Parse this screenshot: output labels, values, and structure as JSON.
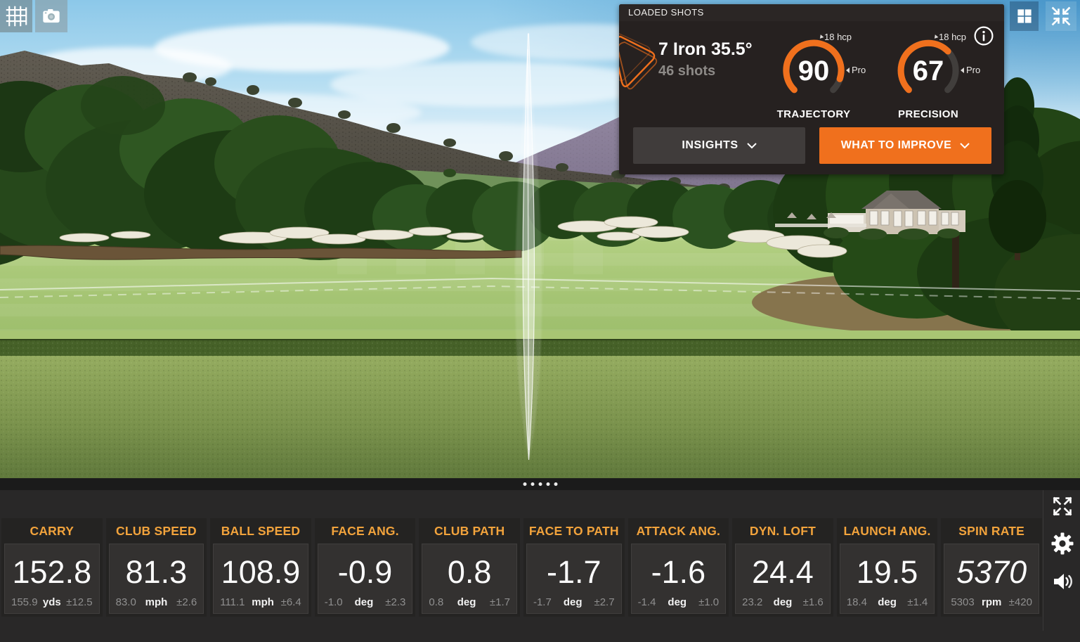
{
  "colors": {
    "accent_orange": "#f0701d",
    "metric_label_amber": "#f2a33c",
    "gauge_track_gray": "#413e3c",
    "panel_bg": "#262120",
    "bottom_bar_bg": "#292828"
  },
  "top_left_toolbar": {
    "buttons": [
      {
        "id": "grid",
        "icon": "grid-icon"
      },
      {
        "id": "camera",
        "icon": "camera-icon"
      }
    ]
  },
  "top_right_toolbar": {
    "buttons": [
      {
        "id": "layout-tiles",
        "icon": "tiles-icon"
      },
      {
        "id": "collapse-view",
        "icon": "collapse-arrows-icon"
      }
    ]
  },
  "loaded_shots_panel": {
    "title": "LOADED SHOTS",
    "club_name": "7 Iron 35.5°",
    "shot_count": "46 shots",
    "gauges": [
      {
        "label": "TRAJECTORY",
        "value": 90,
        "max": 100,
        "hcp_marker": "18 hcp",
        "pro_marker": "Pro"
      },
      {
        "label": "PRECISION",
        "value": 67,
        "max": 100,
        "hcp_marker": "18 hcp",
        "pro_marker": "Pro"
      }
    ],
    "buttons": {
      "insights": "INSIGHTS",
      "what_to_improve": "WHAT TO IMPROVE"
    },
    "info_icon": "info-icon",
    "logo_icon": "trackman-swoosh-logo"
  },
  "pager": {
    "dot_count": 5
  },
  "metrics": [
    {
      "label": "CARRY",
      "value": "152.8",
      "avg": "155.9",
      "unit": "yds",
      "deviation": "±12.5",
      "italic": false
    },
    {
      "label": "CLUB SPEED",
      "value": "81.3",
      "avg": "83.0",
      "unit": "mph",
      "deviation": "±2.6",
      "italic": false
    },
    {
      "label": "BALL SPEED",
      "value": "108.9",
      "avg": "111.1",
      "unit": "mph",
      "deviation": "±6.4",
      "italic": false
    },
    {
      "label": "FACE ANG.",
      "value": "-0.9",
      "avg": "-1.0",
      "unit": "deg",
      "deviation": "±2.3",
      "italic": false
    },
    {
      "label": "CLUB PATH",
      "value": "0.8",
      "avg": "0.8",
      "unit": "deg",
      "deviation": "±1.7",
      "italic": false
    },
    {
      "label": "FACE TO PATH",
      "value": "-1.7",
      "avg": "-1.7",
      "unit": "deg",
      "deviation": "±2.7",
      "italic": false
    },
    {
      "label": "ATTACK ANG.",
      "value": "-1.6",
      "avg": "-1.4",
      "unit": "deg",
      "deviation": "±1.0",
      "italic": false
    },
    {
      "label": "DYN. LOFT",
      "value": "24.4",
      "avg": "23.2",
      "unit": "deg",
      "deviation": "±1.6",
      "italic": false
    },
    {
      "label": "LAUNCH ANG.",
      "value": "19.5",
      "avg": "18.4",
      "unit": "deg",
      "deviation": "±1.4",
      "italic": false
    },
    {
      "label": "SPIN RATE",
      "value": "5370",
      "avg": "5303",
      "unit": "rpm",
      "deviation": "±420",
      "italic": true
    }
  ],
  "side_controls": [
    {
      "id": "expand",
      "icon": "expand-arrows-icon"
    },
    {
      "id": "settings",
      "icon": "gear-icon"
    },
    {
      "id": "sound",
      "icon": "speaker-icon"
    }
  ]
}
